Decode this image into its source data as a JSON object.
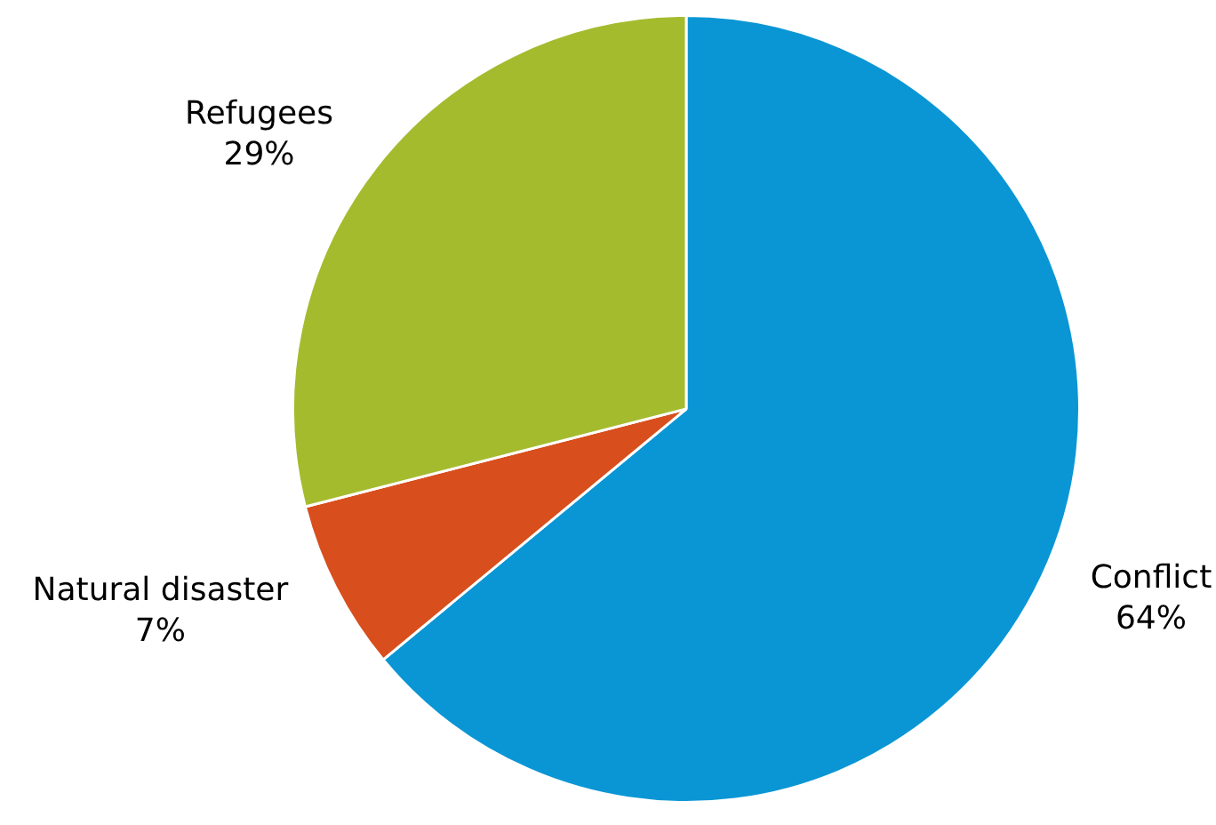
{
  "chart_data": {
    "type": "pie",
    "categories": [
      "Conflict",
      "Natural disaster",
      "Refugees"
    ],
    "values": [
      64,
      7,
      29
    ],
    "colors": [
      "#0a96d4",
      "#d84e1c",
      "#a5bb2e"
    ],
    "value_labels": [
      "64%",
      "7%",
      "29%"
    ]
  }
}
